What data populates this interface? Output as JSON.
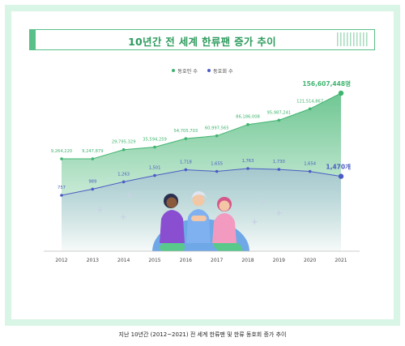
{
  "title": "10년간 전 세계 한류팬 증가 추이",
  "caption": "지난 10년간 (2012~2021) 전 세계 한류팬 및 한류 동호회 증가 추이",
  "colors": {
    "fans": "#3fb46f",
    "clubs": "#4b5cc4",
    "accent": "#5ac089",
    "background": "#d9f5e6"
  },
  "chart_data": {
    "type": "line",
    "title": "10년간 전 세계 한류팬 증가 추이",
    "categories": [
      "2012",
      "2013",
      "2014",
      "2015",
      "2016",
      "2017",
      "2018",
      "2019",
      "2020",
      "2021"
    ],
    "series": [
      {
        "name": "동호인 수",
        "values": [
          9264220,
          9247879,
          29795329,
          35594259,
          54705703,
          60997565,
          86186008,
          95987241,
          121514867,
          156607448
        ],
        "labels": [
          "9,264,220",
          "9,247,879",
          "29,795,329",
          "35,594,259",
          "54,705,703",
          "60,997,565",
          "86,186,008",
          "95,987,241",
          "121,514,867",
          "156,607,448명"
        ]
      },
      {
        "name": "동호회 수",
        "values": [
          757,
          989,
          1263,
          1501,
          1718,
          1655,
          1763,
          1730,
          1654,
          1470
        ],
        "labels": [
          "757",
          "989",
          "1,263",
          "1,501",
          "1,718",
          "1,655",
          "1,763",
          "1,730",
          "1,654",
          "1,470개"
        ]
      }
    ],
    "legend_position": "top-center",
    "grid": false
  }
}
